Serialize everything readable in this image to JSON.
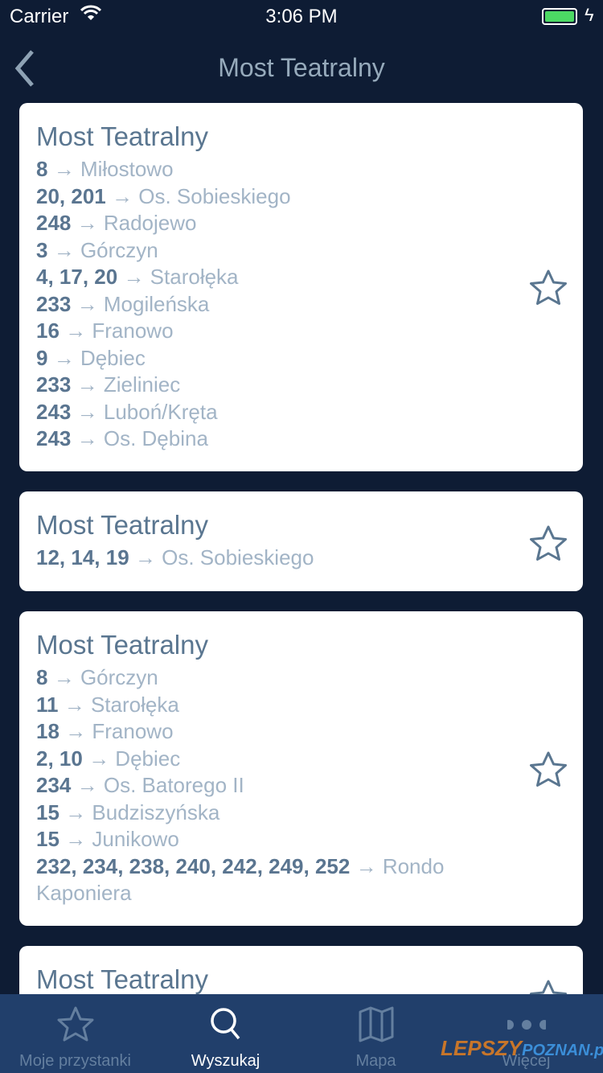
{
  "status": {
    "carrier": "Carrier",
    "time": "3:06 PM",
    "battery_percent": 100,
    "battery_color": "#4cd964"
  },
  "nav": {
    "title": "Most Teatralny"
  },
  "cards": [
    {
      "title": "Most Teatralny",
      "routes": [
        {
          "lines": "8",
          "dest": "Miłostowo"
        },
        {
          "lines": "20, 201",
          "dest": "Os. Sobieskiego"
        },
        {
          "lines": "248",
          "dest": "Radojewo"
        },
        {
          "lines": "3",
          "dest": "Górczyn"
        },
        {
          "lines": "4, 17, 20",
          "dest": "Starołęka"
        },
        {
          "lines": "233",
          "dest": "Mogileńska"
        },
        {
          "lines": "16",
          "dest": "Franowo"
        },
        {
          "lines": "9",
          "dest": "Dębiec"
        },
        {
          "lines": "233",
          "dest": "Zieliniec"
        },
        {
          "lines": "243",
          "dest": "Luboń/Kręta"
        },
        {
          "lines": "243",
          "dest": "Os. Dębina"
        }
      ]
    },
    {
      "title": "Most Teatralny",
      "routes": [
        {
          "lines": "12, 14, 19",
          "dest": "Os. Sobieskiego"
        }
      ]
    },
    {
      "title": "Most Teatralny",
      "routes": [
        {
          "lines": "8",
          "dest": "Górczyn"
        },
        {
          "lines": "11",
          "dest": "Starołęka"
        },
        {
          "lines": "18",
          "dest": "Franowo"
        },
        {
          "lines": "2, 10",
          "dest": "Dębiec"
        },
        {
          "lines": "234",
          "dest": "Os. Batorego II"
        },
        {
          "lines": "15",
          "dest": "Budziszyńska"
        },
        {
          "lines": "15",
          "dest": "Junikowo"
        },
        {
          "lines": "232, 234, 238, 240, 242, 249, 252",
          "dest": "Rondo Kaponiera"
        }
      ]
    },
    {
      "title": "Most Teatralny",
      "routes": []
    }
  ],
  "arrow": "→",
  "tabs": [
    {
      "label": "Moje przystanki",
      "icon": "star-icon"
    },
    {
      "label": "Wyszukaj",
      "icon": "search-icon",
      "active": true
    },
    {
      "label": "Mapa",
      "icon": "map-icon"
    },
    {
      "label": "Więcej",
      "icon": "more-icon"
    }
  ],
  "watermark": {
    "part1": "LEPSZY",
    "part2": "POZNAN.pl"
  }
}
